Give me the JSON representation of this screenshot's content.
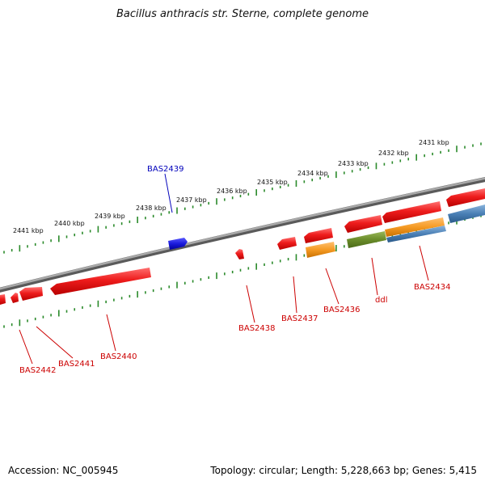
{
  "title": "Bacillus anthracis str. Sterne, complete genome",
  "footer": {
    "accession": "Accession: NC_005945",
    "summary": "Topology: circular; Length: 5,228,663 bp; Genes: 5,415"
  },
  "colors": {
    "backbone": "#8a8a8a",
    "tick": "#2a8a2a",
    "gene_red": "#ee1c1c",
    "gene_blue": "#1a1adc",
    "gene_orange": "#f59a23",
    "gene_green": "#6a8c2a",
    "gene_steel": "#4a7fb5",
    "label_red": "#cc0000",
    "label_blue": "#0000bb"
  },
  "scale_labels": [
    "2441 kbp",
    "2440 kbp",
    "2439 kbp",
    "2438 kbp",
    "2437 kbp",
    "2436 kbp",
    "2435 kbp",
    "2434 kbp",
    "2433 kbp",
    "2432 kbp",
    "2431 kbp"
  ],
  "gene_labels": {
    "BAS2439": "BAS2439",
    "BAS2442": "BAS2442",
    "BAS2441": "BAS2441",
    "BAS2440": "BAS2440",
    "BAS2438": "BAS2438",
    "BAS2437": "BAS2437",
    "BAS2436": "BAS2436",
    "ddl": "ddl",
    "BAS2434": "BAS2434"
  }
}
